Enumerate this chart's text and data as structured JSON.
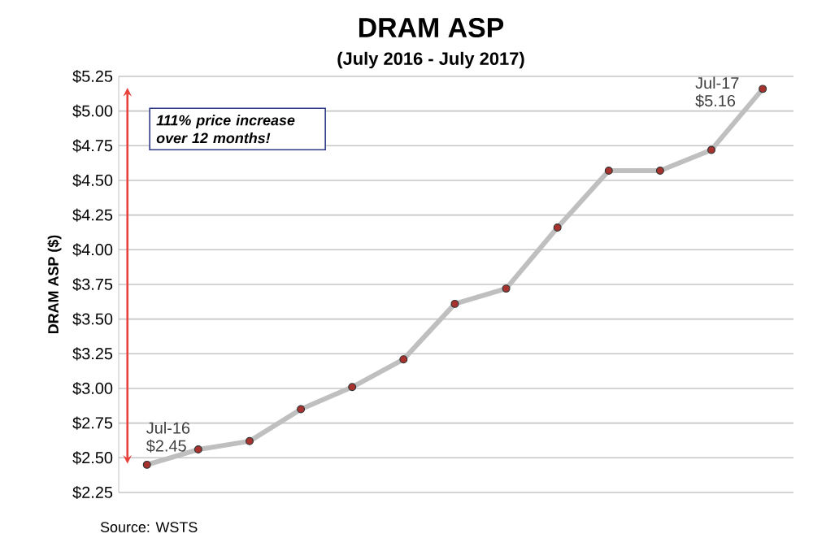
{
  "chart_data": {
    "type": "line",
    "title": "DRAM ASP",
    "subtitle": "(July 2016 - July 2017)",
    "ylabel": "DRAM ASP ($)",
    "categories": [
      null,
      null,
      null,
      null,
      null,
      null,
      null,
      null,
      null,
      null,
      null,
      null,
      null
    ],
    "values": [
      2.45,
      2.56,
      2.62,
      2.85,
      3.01,
      3.21,
      3.61,
      3.72,
      4.16,
      4.57,
      4.57,
      4.72,
      5.16
    ],
    "value_labels": [
      "Jul-16 $2.45",
      null,
      null,
      null,
      null,
      null,
      null,
      null,
      null,
      null,
      null,
      null,
      "Jul-17 $5.16"
    ],
    "color": "#bfbfbf",
    "marker": "circle",
    "line_style": "solid",
    "grid": "y",
    "ylim": [
      2.25,
      5.25
    ],
    "yticks": [
      {
        "value": 2.25,
        "label": "$2.25"
      },
      {
        "value": 2.5,
        "label": "$2.50"
      },
      {
        "value": 2.75,
        "label": "$2.75"
      },
      {
        "value": 3.0,
        "label": "$3.00"
      },
      {
        "value": 3.25,
        "label": "$3.25"
      },
      {
        "value": 3.5,
        "label": "$3.50"
      },
      {
        "value": 3.75,
        "label": "$3.75"
      },
      {
        "value": 4.0,
        "label": "$4.00"
      },
      {
        "value": 4.25,
        "label": "$4.25"
      },
      {
        "value": 4.5,
        "label": "$4.50"
      },
      {
        "value": 4.75,
        "label": "$4.75"
      },
      {
        "value": 5.0,
        "label": "$5.00"
      },
      {
        "value": 5.25,
        "label": "$5.25"
      }
    ],
    "annotations": [
      "111% price increase over 12 months!",
      "Source: WSTS"
    ]
  }
}
